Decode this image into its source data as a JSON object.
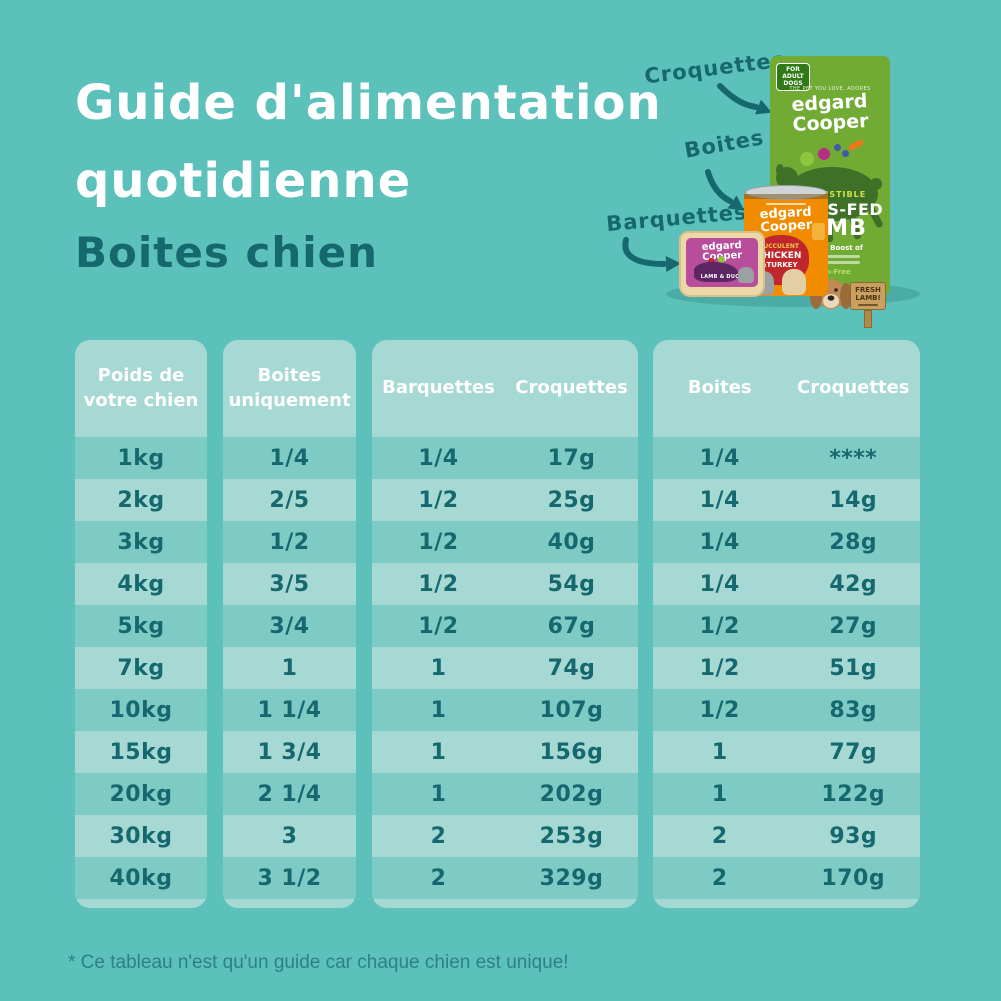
{
  "title": {
    "line1": "Guide d'alimentation",
    "line2": "quotidienne",
    "subtitle": "Boites chien"
  },
  "product_labels": [
    {
      "label": "Croquettes"
    },
    {
      "label": "Boites"
    },
    {
      "label": "Barquettes"
    }
  ],
  "products": {
    "bag": {
      "badge": "FOR ADULT DOGS",
      "tagline": "THE PET YOU LOVE, ADORES",
      "brand_line1": "edgard",
      "brand_line2": "Cooper",
      "flavor_tag": "IRRESISTIBLE",
      "flavor_line1": "GRASS-FED",
      "flavor_line2": "LAMB",
      "boost": "Healthy Boost of",
      "grain": "Grain-Free",
      "sign": "FRESH LAMB!"
    },
    "can": {
      "brand_line1": "edgard",
      "brand_line2": "Cooper",
      "flavor_tag": "SUCCULENT",
      "flavor_line1": "CHICKEN",
      "flavor_line2": "&TURKEY"
    },
    "tray": {
      "brand_line1": "edgard",
      "brand_line2": "Cooper",
      "flavor": "LAMB & DUCK"
    }
  },
  "tables": [
    {
      "name": "poids",
      "headers": [
        "Poids de\nvotre chien"
      ],
      "rows": [
        [
          "1kg"
        ],
        [
          "2kg"
        ],
        [
          "3kg"
        ],
        [
          "4kg"
        ],
        [
          "5kg"
        ],
        [
          "7kg"
        ],
        [
          "10kg"
        ],
        [
          "15kg"
        ],
        [
          "20kg"
        ],
        [
          "30kg"
        ],
        [
          "40kg"
        ]
      ]
    },
    {
      "name": "boites-uniquement",
      "headers": [
        "Boites\nuniquement"
      ],
      "rows": [
        [
          "1/4"
        ],
        [
          "2/5"
        ],
        [
          "1/2"
        ],
        [
          "3/5"
        ],
        [
          "3/4"
        ],
        [
          "1"
        ],
        [
          "1 1/4"
        ],
        [
          "1 3/4"
        ],
        [
          "2 1/4"
        ],
        [
          "3"
        ],
        [
          "3 1/2"
        ]
      ]
    },
    {
      "name": "barquettes-croquettes",
      "headers": [
        "Barquettes",
        "Croquettes"
      ],
      "rows": [
        [
          "1/4",
          "17g"
        ],
        [
          "1/2",
          "25g"
        ],
        [
          "1/2",
          "40g"
        ],
        [
          "1/2",
          "54g"
        ],
        [
          "1/2",
          "67g"
        ],
        [
          "1",
          "74g"
        ],
        [
          "1",
          "107g"
        ],
        [
          "1",
          "156g"
        ],
        [
          "1",
          "202g"
        ],
        [
          "2",
          "253g"
        ],
        [
          "2",
          "329g"
        ]
      ]
    },
    {
      "name": "boites-croquettes",
      "headers": [
        "Boites",
        "Croquettes"
      ],
      "rows": [
        [
          "1/4",
          "****"
        ],
        [
          "1/4",
          "14g"
        ],
        [
          "1/4",
          "28g"
        ],
        [
          "1/4",
          "42g"
        ],
        [
          "1/2",
          "27g"
        ],
        [
          "1/2",
          "51g"
        ],
        [
          "1/2",
          "83g"
        ],
        [
          "1",
          "77g"
        ],
        [
          "1",
          "122g"
        ],
        [
          "2",
          "93g"
        ],
        [
          "2",
          "170g"
        ]
      ]
    }
  ],
  "footnote": "* Ce tableau n'est qu'un guide car chaque chien est unique!",
  "colors": {
    "background": "#5cc1ba",
    "table_light": "#a6d8d4",
    "table_dark_row": "#7ecbc5",
    "ink_dark_teal": "#15696e",
    "title_white": "#ffffff",
    "footnote": "#2e8084",
    "bag_green": "#71ab34",
    "bag_dark_green": "#3e7028",
    "can_orange": "#f18c00",
    "can_red": "#c0272d",
    "tray_pink": "#b84e9b",
    "tray_rim": "#ecd8a6",
    "sign_tan": "#c9a05e"
  }
}
